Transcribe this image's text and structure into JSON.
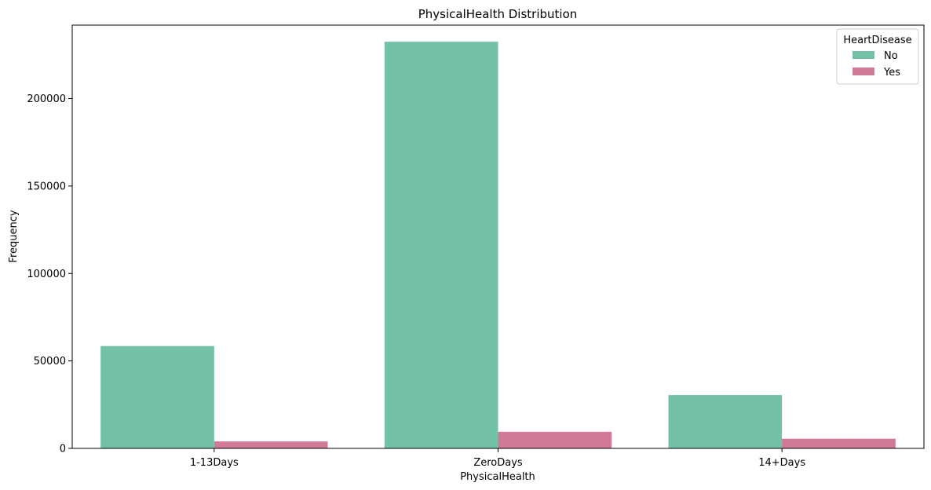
{
  "chart_data": {
    "type": "bar",
    "title": "PhysicalHealth Distribution",
    "xlabel": "PhysicalHealth",
    "ylabel": "Frequency",
    "categories": [
      "1-13Days",
      "ZeroDays",
      "14+Days"
    ],
    "ylim": [
      0,
      242000
    ],
    "yticks": [
      0,
      50000,
      100000,
      150000,
      200000
    ],
    "series": [
      {
        "name": "No",
        "color": "#73c1a6",
        "values": [
          58500,
          232500,
          30500
        ]
      },
      {
        "name": "Yes",
        "color": "#d17a98",
        "values": [
          4000,
          9500,
          5500
        ]
      }
    ],
    "legend": {
      "title": "HeartDisease",
      "position": "top-right"
    },
    "grid": false
  }
}
